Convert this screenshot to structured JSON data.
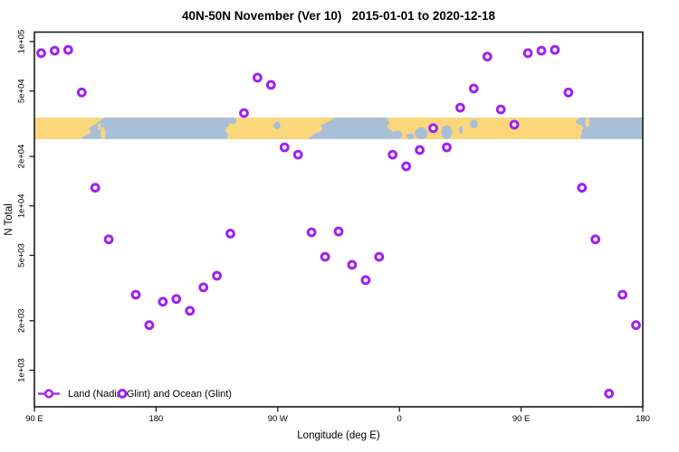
{
  "title": "40N-50N November (Ver 10)   2015-01-01 to 2020-12-18",
  "legend": {
    "label": "Land (Nadir&Glint) and Ocean (Glint)",
    "marker_color": "#A020F0"
  },
  "chart_data": {
    "type": "scatter",
    "title": "40N-50N November (Ver 10)   2015-01-01 to 2020-12-18",
    "xlabel": "Longitude (deg E)",
    "ylabel": "N Total",
    "y_scale": "log10",
    "grid": false,
    "legend_position": "bottom-left-inside",
    "x_axis": {
      "note": "axis wraps eastward from 90E; axis_deg runs 90..540",
      "range_deg": [
        90,
        540
      ],
      "ticks": [
        {
          "label": "90 E",
          "axis_deg": 90
        },
        {
          "label": "180",
          "axis_deg": 180
        },
        {
          "label": "90 W",
          "axis_deg": 270
        },
        {
          "label": "0",
          "axis_deg": 360
        },
        {
          "label": "90 E",
          "axis_deg": 450
        },
        {
          "label": "180",
          "axis_deg": 540
        }
      ]
    },
    "y_axis": {
      "range": [
        600,
        114000
      ],
      "ticks": [
        {
          "label": "1e+05",
          "value": 100000
        },
        {
          "label": "5e+04",
          "value": 50000
        },
        {
          "label": "2e+04",
          "value": 20000
        },
        {
          "label": "1e+04",
          "value": 10000
        },
        {
          "label": "5e+03",
          "value": 5000
        },
        {
          "label": "2e+03",
          "value": 2000
        },
        {
          "label": "1e+03",
          "value": 1000
        }
      ]
    },
    "series": [
      {
        "name": "Land (Nadir&Glint) and Ocean (Glint)",
        "marker": "open-circle",
        "color": "#A020F0",
        "point_format": "[axis_deg, n_total]",
        "points": [
          [
            95,
            85000
          ],
          [
            105,
            88000
          ],
          [
            115,
            89000
          ],
          [
            125,
            49000
          ],
          [
            135,
            12900
          ],
          [
            145,
            6250
          ],
          [
            155,
            720
          ],
          [
            165,
            2880
          ],
          [
            175,
            1880
          ],
          [
            185,
            2610
          ],
          [
            195,
            2710
          ],
          [
            205,
            2300
          ],
          [
            215,
            3190
          ],
          [
            225,
            3760
          ],
          [
            235,
            6780
          ],
          [
            245,
            36700
          ],
          [
            255,
            60300
          ],
          [
            265,
            54500
          ],
          [
            275,
            22700
          ],
          [
            285,
            20500
          ],
          [
            295,
            6900
          ],
          [
            305,
            4900
          ],
          [
            315,
            6990
          ],
          [
            325,
            4380
          ],
          [
            335,
            3530
          ],
          [
            345,
            4900
          ],
          [
            355,
            20500
          ],
          [
            365,
            17400
          ],
          [
            375,
            21900
          ],
          [
            385,
            29700
          ],
          [
            395,
            22700
          ],
          [
            405,
            39600
          ],
          [
            415,
            51800
          ],
          [
            425,
            81000
          ],
          [
            435,
            38600
          ],
          [
            445,
            31200
          ],
          [
            455,
            85000
          ],
          [
            465,
            88000
          ],
          [
            475,
            89000
          ],
          [
            485,
            49000
          ],
          [
            495,
            12900
          ],
          [
            505,
            6250
          ],
          [
            515,
            720
          ],
          [
            525,
            2880
          ],
          [
            535,
            1880
          ]
        ]
      }
    ],
    "map_band": {
      "description": "40N-50N land/ocean world strip drawn across plot",
      "land_color": "#FBD77C",
      "ocean_color": "#A9BFD8",
      "n_range": [
        25500,
        34500
      ],
      "land_segments": [
        {
          "name": "asia-east",
          "deg": [
            90,
            135.5
          ]
        },
        {
          "name": "north-america",
          "deg": [
            234,
            310
          ]
        },
        {
          "name": "eurasia",
          "deg": [
            348.5,
            496
          ]
        }
      ],
      "islands": [
        {
          "name": "japan",
          "deg": [
            139,
            142.5
          ],
          "frac": [
            0.45,
            1
          ]
        },
        {
          "name": "hokkaido",
          "deg": [
            137,
            139
          ],
          "frac": [
            0.25,
            0.6
          ]
        },
        {
          "name": "kamchatka",
          "deg": [
            497.5,
            500.5
          ],
          "frac": [
            0,
            0.45
          ]
        }
      ],
      "lakes": [
        {
          "name": "black-sea",
          "deg": [
            371.5,
            381
          ],
          "frac": [
            0.45,
            1
          ]
        },
        {
          "name": "caspian-sea",
          "deg": [
            391,
            399
          ],
          "frac": [
            0.35,
            1
          ]
        },
        {
          "name": "aral-sea",
          "deg": [
            404,
            407
          ],
          "frac": [
            0.4,
            0.75
          ]
        },
        {
          "name": "balkhash",
          "deg": [
            412,
            418
          ],
          "frac": [
            0.1,
            0.5
          ]
        },
        {
          "name": "mediterranean-1",
          "deg": [
            355,
            362
          ],
          "frac": [
            0.6,
            1
          ]
        },
        {
          "name": "mediterranean-2",
          "deg": [
            365,
            371
          ],
          "frac": [
            0.75,
            1
          ]
        },
        {
          "name": "great-lakes",
          "deg": [
            267,
            272
          ],
          "frac": [
            0.2,
            0.55
          ]
        },
        {
          "name": "bc-inlets",
          "deg": [
            233.5,
            239.5
          ],
          "frac": [
            0,
            0.3
          ]
        }
      ]
    }
  }
}
